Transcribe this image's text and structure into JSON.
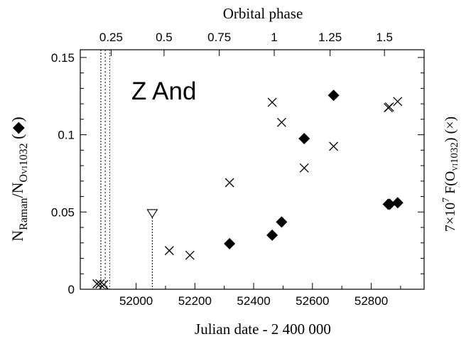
{
  "chart_data": {
    "type": "scatter",
    "annotation": "Z And",
    "xlabel": "Julian date - 2 400 000",
    "top_axis_label": "Orbital phase",
    "ylabel_left": {
      "base": "N",
      "sub1": "Raman",
      "mid": "/N",
      "sub2": "O",
      "sub2b": "VI",
      "sub2c": "1032",
      "tail": " (◆)"
    },
    "ylabel_right": {
      "pre": "7×10",
      "sup": "7",
      "mid": " F(O",
      "sub": "VI",
      "sub2": "1032",
      "tail": ") (×)"
    },
    "xlim": [
      51810,
      52980
    ],
    "ylim": [
      0,
      0.155
    ],
    "x_ticks": [
      {
        "value": 52000,
        "label": "52000"
      },
      {
        "value": 52200,
        "label": "52200"
      },
      {
        "value": 52400,
        "label": "52400"
      },
      {
        "value": 52600,
        "label": "52600"
      },
      {
        "value": 52800,
        "label": "52800"
      }
    ],
    "y_ticks": [
      {
        "value": 0,
        "label": "0"
      },
      {
        "value": 0.05,
        "label": "0.05"
      },
      {
        "value": 0.1,
        "label": "0.1"
      },
      {
        "value": 0.15,
        "label": "0.15"
      }
    ],
    "top_ticks": [
      {
        "jd": 51915,
        "label": "0.25"
      },
      {
        "jd": 52095,
        "label": "0.5"
      },
      {
        "jd": 52283,
        "label": "0.75"
      },
      {
        "jd": 52470,
        "label": "1"
      },
      {
        "jd": 52660,
        "label": "1.25"
      },
      {
        "jd": 52845,
        "label": "1.5"
      }
    ],
    "vertical_dotted_lines": [
      51880,
      51895,
      51910
    ],
    "series": [
      {
        "name": "NRaman/NOVI1032",
        "marker": "diamond",
        "points": [
          [
            52318,
            0.0295
          ],
          [
            52463,
            0.035
          ],
          [
            52495,
            0.0435
          ],
          [
            52572,
            0.0975
          ],
          [
            52672,
            0.1255
          ],
          [
            52858,
            0.055
          ],
          [
            52863,
            0.055
          ],
          [
            52890,
            0.056
          ]
        ]
      },
      {
        "name": "7e7 F(OVI1032)",
        "marker": "cross",
        "points": [
          [
            51867,
            0.0035
          ],
          [
            51877,
            0.0035
          ],
          [
            51890,
            0.003
          ],
          [
            52113,
            0.025
          ],
          [
            52183,
            0.022
          ],
          [
            52318,
            0.069
          ],
          [
            52463,
            0.121
          ],
          [
            52495,
            0.108
          ],
          [
            52572,
            0.0785
          ],
          [
            52672,
            0.0925
          ],
          [
            52858,
            0.1175
          ],
          [
            52862,
            0.118
          ],
          [
            52890,
            0.1215
          ]
        ]
      },
      {
        "name": "upper limit",
        "marker": "triangle-down",
        "points": [
          [
            52055,
            0.049
          ]
        ]
      }
    ]
  }
}
